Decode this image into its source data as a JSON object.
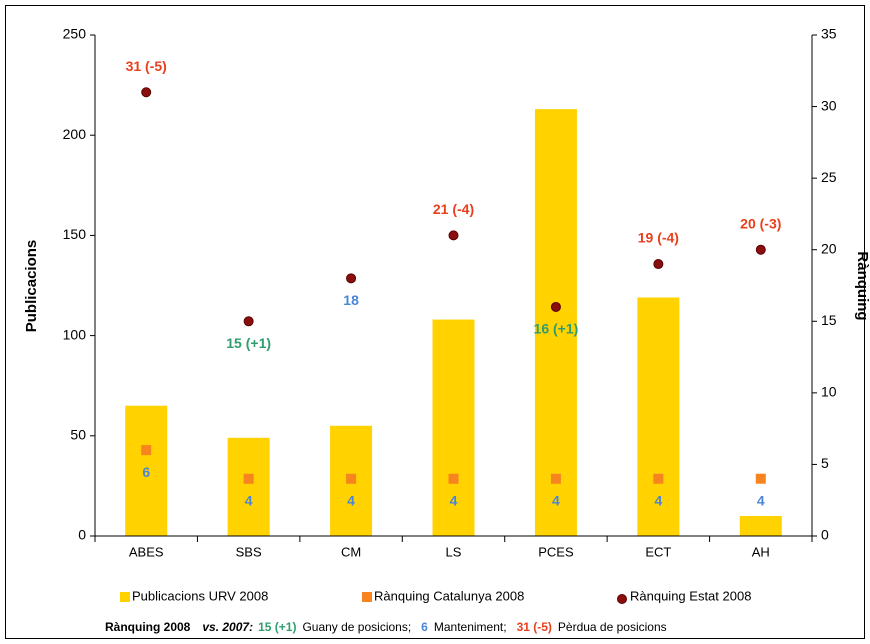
{
  "chart_data": {
    "type": "bar",
    "categories": [
      "ABES",
      "SBS",
      "CM",
      "LS",
      "PCES",
      "ECT",
      "AH"
    ],
    "ylabel": "Publicacions",
    "y2label": "Rànquing",
    "ylim": [
      0,
      250
    ],
    "yticks": [
      0,
      50,
      100,
      150,
      200,
      250
    ],
    "y2lim": [
      0,
      35
    ],
    "y2ticks": [
      0,
      5,
      10,
      15,
      20,
      25,
      30,
      35
    ],
    "series": [
      {
        "name": "Publicacions URV 2008",
        "type": "bar",
        "color": "#ffd200",
        "values": [
          65,
          49,
          55,
          108,
          213,
          119,
          10
        ]
      },
      {
        "name": "Rànquing Catalunya 2008",
        "type": "scatter",
        "marker": "square",
        "axis": "y2",
        "color": "#f7841f",
        "values": [
          6,
          4,
          4,
          4,
          4,
          4,
          4
        ],
        "label_colors": [
          "#4a86d8",
          "#4a86d8",
          "#4a86d8",
          "#4a86d8",
          "#4a86d8",
          "#4a86d8",
          "#4a86d8"
        ]
      },
      {
        "name": "Rànquing Estat 2008",
        "type": "scatter",
        "marker": "circle",
        "axis": "y2",
        "color": "#8b0e0e",
        "values": [
          31,
          15,
          18,
          21,
          16,
          19,
          20
        ],
        "value_labels": [
          "31 (-5)",
          "15 (+1)",
          "18",
          "21 (-4)",
          "16 (+1)",
          "19 (-4)",
          "20 (-3)"
        ],
        "label_colors": [
          "#e8401c",
          "#2e9e6e",
          "#4a86d8",
          "#e8401c",
          "#2e9e6e",
          "#e8401c",
          "#e8401c"
        ]
      }
    ],
    "footnote": {
      "prefix": "Rànquing 2008",
      "vs": "vs. 2007:",
      "items": [
        {
          "sample": "15 (+1)",
          "color": "#2e9e6e",
          "text": "Guany de posicions;"
        },
        {
          "sample": "6",
          "color": "#4a86d8",
          "text": "Manteniment;"
        },
        {
          "sample": "31 (-5)",
          "color": "#e8401c",
          "text": "Pèrdua de posicions"
        }
      ]
    }
  }
}
